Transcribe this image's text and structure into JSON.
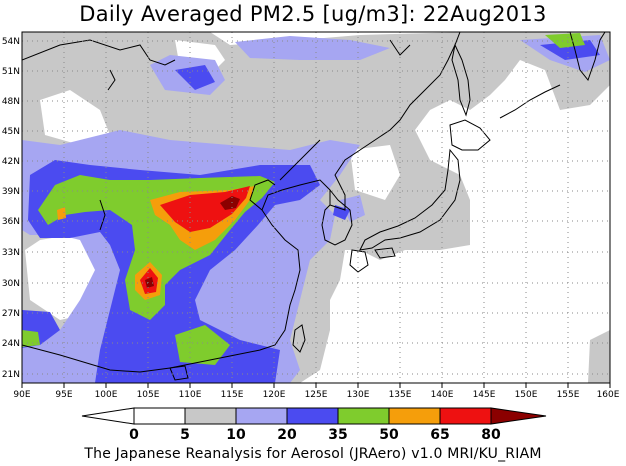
{
  "title": "Daily Averaged PM2.5 [ug/m3]: 22Aug2013",
  "footer": "The Japanese Reanalysis for Aerosol (JRAero) v1.0 MRI/KU_RIAM",
  "map": {
    "lon_labels": [
      "90E",
      "95E",
      "100E",
      "105E",
      "110E",
      "115E",
      "120E",
      "125E",
      "130E",
      "135E",
      "140E",
      "145E",
      "150E",
      "155E",
      "160E"
    ],
    "lat_labels": [
      "54N",
      "51N",
      "48N",
      "45N",
      "42N",
      "39N",
      "36N",
      "33N",
      "30N",
      "27N",
      "24N",
      "21N"
    ],
    "lon_range": [
      90,
      160
    ],
    "lat_range": [
      20,
      55
    ],
    "grid": "dotted",
    "contour_colors": {
      "0-5": "#ffffff",
      "5-10": "#c8c8c8",
      "10-20": "#a6a6f2",
      "20-35": "#4b4bf0",
      "35-50": "#7fcc2d",
      "50-65": "#f59e0b",
      "65-80": "#ee1111",
      "80+": "#8b0000"
    }
  },
  "colorbar": {
    "labels": [
      "0",
      "5",
      "10",
      "20",
      "35",
      "50",
      "65",
      "80"
    ],
    "colors": [
      "#ffffff",
      "#ffffff",
      "#c8c8c8",
      "#a6a6f2",
      "#4b4bf0",
      "#7fcc2d",
      "#f59e0b",
      "#ee1111",
      "#8b0000"
    ]
  }
}
